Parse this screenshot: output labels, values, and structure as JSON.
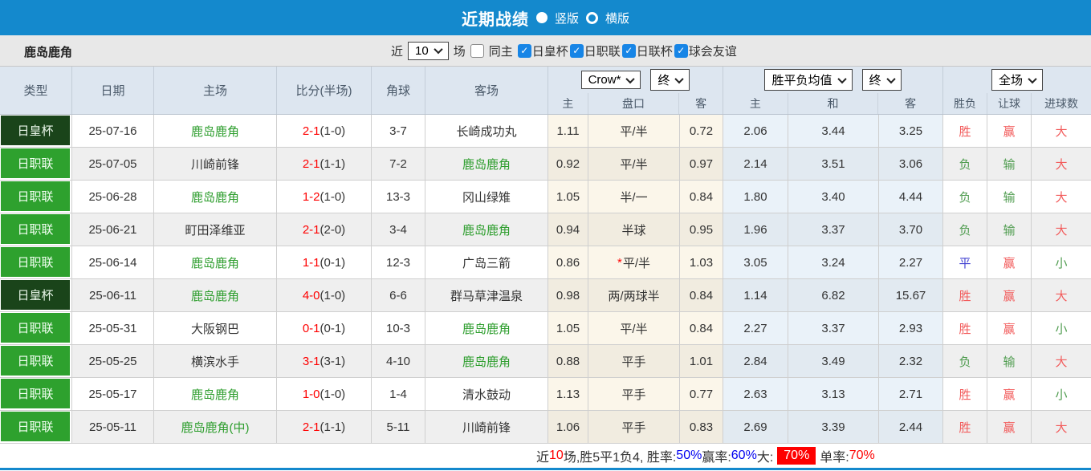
{
  "titlebar": {
    "title": "近期战绩",
    "radio_selected_label": "竖版",
    "radio_unselected_label": "横版"
  },
  "filterbar": {
    "team": "鹿岛鹿角",
    "near_label": "近",
    "count_value": "10",
    "games_label": "场",
    "same_home": {
      "label": "同主",
      "checked": false
    },
    "leagues": [
      {
        "label": "日皇杯",
        "checked": true
      },
      {
        "label": "日职联",
        "checked": true
      },
      {
        "label": "日联杯",
        "checked": true
      },
      {
        "label": "球会友谊",
        "checked": true
      }
    ]
  },
  "table": {
    "main_headers": [
      "类型",
      "日期",
      "主场",
      "比分(半场)",
      "角球",
      "客场"
    ],
    "controls": {
      "company_select": "Crow*",
      "company_period_select": "终",
      "avg_select": "胜平负均值",
      "avg_period_select": "终",
      "scope_select": "全场"
    },
    "sub_headers": [
      "主",
      "盘口",
      "客",
      "主",
      "和",
      "客",
      "胜负",
      "让球",
      "进球数"
    ],
    "rows": [
      {
        "type": "日皇杯",
        "type_dark": true,
        "date": "25-07-16",
        "home": "鹿岛鹿角",
        "home_self": true,
        "score_ft": "2-1",
        "score_ht": "(1-0)",
        "corner": "3-7",
        "away": "长崎成功丸",
        "away_self": false,
        "odds_home": "1.11",
        "handicap": "平/半",
        "handicap_star": false,
        "odds_away": "0.72",
        "avg_home": "2.06",
        "avg_draw": "3.44",
        "avg_away": "3.25",
        "result": "胜",
        "result_c": "red",
        "handicap_result": "赢",
        "handicap_c": "red",
        "goals_result": "大",
        "goals_c": "red"
      },
      {
        "type": "日职联",
        "type_dark": false,
        "date": "25-07-05",
        "home": "川崎前锋",
        "home_self": false,
        "score_ft": "2-1",
        "score_ht": "(1-1)",
        "corner": "7-2",
        "away": "鹿岛鹿角",
        "away_self": true,
        "odds_home": "0.92",
        "handicap": "平/半",
        "handicap_star": false,
        "odds_away": "0.97",
        "avg_home": "2.14",
        "avg_draw": "3.51",
        "avg_away": "3.06",
        "result": "负",
        "result_c": "green",
        "handicap_result": "输",
        "handicap_c": "green",
        "goals_result": "大",
        "goals_c": "red"
      },
      {
        "type": "日职联",
        "type_dark": false,
        "date": "25-06-28",
        "home": "鹿岛鹿角",
        "home_self": true,
        "score_ft": "1-2",
        "score_ht": "(1-0)",
        "corner": "13-3",
        "away": "冈山绿雉",
        "away_self": false,
        "odds_home": "1.05",
        "handicap": "半/一",
        "handicap_star": false,
        "odds_away": "0.84",
        "avg_home": "1.80",
        "avg_draw": "3.40",
        "avg_away": "4.44",
        "result": "负",
        "result_c": "green",
        "handicap_result": "输",
        "handicap_c": "green",
        "goals_result": "大",
        "goals_c": "red"
      },
      {
        "type": "日职联",
        "type_dark": false,
        "date": "25-06-21",
        "home": "町田泽维亚",
        "home_self": false,
        "score_ft": "2-1",
        "score_ht": "(2-0)",
        "corner": "3-4",
        "away": "鹿岛鹿角",
        "away_self": true,
        "odds_home": "0.94",
        "handicap": "半球",
        "handicap_star": false,
        "odds_away": "0.95",
        "avg_home": "1.96",
        "avg_draw": "3.37",
        "avg_away": "3.70",
        "result": "负",
        "result_c": "green",
        "handicap_result": "输",
        "handicap_c": "green",
        "goals_result": "大",
        "goals_c": "red"
      },
      {
        "type": "日职联",
        "type_dark": false,
        "date": "25-06-14",
        "home": "鹿岛鹿角",
        "home_self": true,
        "score_ft": "1-1",
        "score_ht": "(0-1)",
        "corner": "12-3",
        "away": "广岛三箭",
        "away_self": false,
        "odds_home": "0.86",
        "handicap": "平/半",
        "handicap_star": true,
        "odds_away": "1.03",
        "avg_home": "3.05",
        "avg_draw": "3.24",
        "avg_away": "2.27",
        "result": "平",
        "result_c": "blue",
        "handicap_result": "赢",
        "handicap_c": "red",
        "goals_result": "小",
        "goals_c": "green"
      },
      {
        "type": "日皇杯",
        "type_dark": true,
        "date": "25-06-11",
        "home": "鹿岛鹿角",
        "home_self": true,
        "score_ft": "4-0",
        "score_ht": "(1-0)",
        "corner": "6-6",
        "away": "群马草津温泉",
        "away_self": false,
        "odds_home": "0.98",
        "handicap": "两/两球半",
        "handicap_star": false,
        "odds_away": "0.84",
        "avg_home": "1.14",
        "avg_draw": "6.82",
        "avg_away": "15.67",
        "result": "胜",
        "result_c": "red",
        "handicap_result": "赢",
        "handicap_c": "red",
        "goals_result": "大",
        "goals_c": "red"
      },
      {
        "type": "日职联",
        "type_dark": false,
        "date": "25-05-31",
        "home": "大阪钢巴",
        "home_self": false,
        "score_ft": "0-1",
        "score_ht": "(0-1)",
        "corner": "10-3",
        "away": "鹿岛鹿角",
        "away_self": true,
        "odds_home": "1.05",
        "handicap": "平/半",
        "handicap_star": false,
        "odds_away": "0.84",
        "avg_home": "2.27",
        "avg_draw": "3.37",
        "avg_away": "2.93",
        "result": "胜",
        "result_c": "red",
        "handicap_result": "赢",
        "handicap_c": "red",
        "goals_result": "小",
        "goals_c": "green"
      },
      {
        "type": "日职联",
        "type_dark": false,
        "date": "25-05-25",
        "home": "横滨水手",
        "home_self": false,
        "score_ft": "3-1",
        "score_ht": "(3-1)",
        "corner": "4-10",
        "away": "鹿岛鹿角",
        "away_self": true,
        "odds_home": "0.88",
        "handicap": "平手",
        "handicap_star": false,
        "odds_away": "1.01",
        "avg_home": "2.84",
        "avg_draw": "3.49",
        "avg_away": "2.32",
        "result": "负",
        "result_c": "green",
        "handicap_result": "输",
        "handicap_c": "green",
        "goals_result": "大",
        "goals_c": "red"
      },
      {
        "type": "日职联",
        "type_dark": false,
        "date": "25-05-17",
        "home": "鹿岛鹿角",
        "home_self": true,
        "score_ft": "1-0",
        "score_ht": "(1-0)",
        "corner": "1-4",
        "away": "清水鼓动",
        "away_self": false,
        "odds_home": "1.13",
        "handicap": "平手",
        "handicap_star": false,
        "odds_away": "0.77",
        "avg_home": "2.63",
        "avg_draw": "3.13",
        "avg_away": "2.71",
        "result": "胜",
        "result_c": "red",
        "handicap_result": "赢",
        "handicap_c": "red",
        "goals_result": "小",
        "goals_c": "green"
      },
      {
        "type": "日职联",
        "type_dark": false,
        "date": "25-05-11",
        "home": "鹿岛鹿角(中)",
        "home_self": true,
        "score_ft": "2-1",
        "score_ht": "(1-1)",
        "corner": "5-11",
        "away": "川崎前锋",
        "away_self": false,
        "odds_home": "1.06",
        "handicap": "平手",
        "handicap_star": false,
        "odds_away": "0.83",
        "avg_home": "2.69",
        "avg_draw": "3.39",
        "avg_away": "2.44",
        "result": "胜",
        "result_c": "red",
        "handicap_result": "赢",
        "handicap_c": "red",
        "goals_result": "大",
        "goals_c": "red"
      }
    ]
  },
  "footer": {
    "segments": [
      {
        "text": "近",
        "style": "plain"
      },
      {
        "text": "10",
        "style": "red"
      },
      {
        "text": "场,胜5平1负4, 胜率:",
        "style": "plain"
      },
      {
        "text": "50%",
        "style": "blue"
      },
      {
        "text": " 赢率:",
        "style": "plain"
      },
      {
        "text": "60%",
        "style": "blue"
      },
      {
        "text": " 大:",
        "style": "plain"
      },
      {
        "text": "70%",
        "style": "red-badge"
      },
      {
        "text": " 单率:",
        "style": "plain"
      },
      {
        "text": "70%",
        "style": "red"
      }
    ]
  },
  "colors": {
    "titlebar_blue": "#1489cd",
    "league_green_light": "#2ea12e",
    "league_green_dark": "#1a441a",
    "odds_cream_bg": "#fbf6ea",
    "avg_blue_bg": "#eaf2f9",
    "row_alt_gray": "#efefef",
    "header_bg": "#dde6f0",
    "score_red": "#fe0000",
    "result_red": "#f25b5b",
    "result_green": "#4f9c4f",
    "result_blue": "#4343d2",
    "team_self_green": "#2e9e2e",
    "checkbox_blue": "#1785e6",
    "footer_blue": "#0000f0"
  }
}
